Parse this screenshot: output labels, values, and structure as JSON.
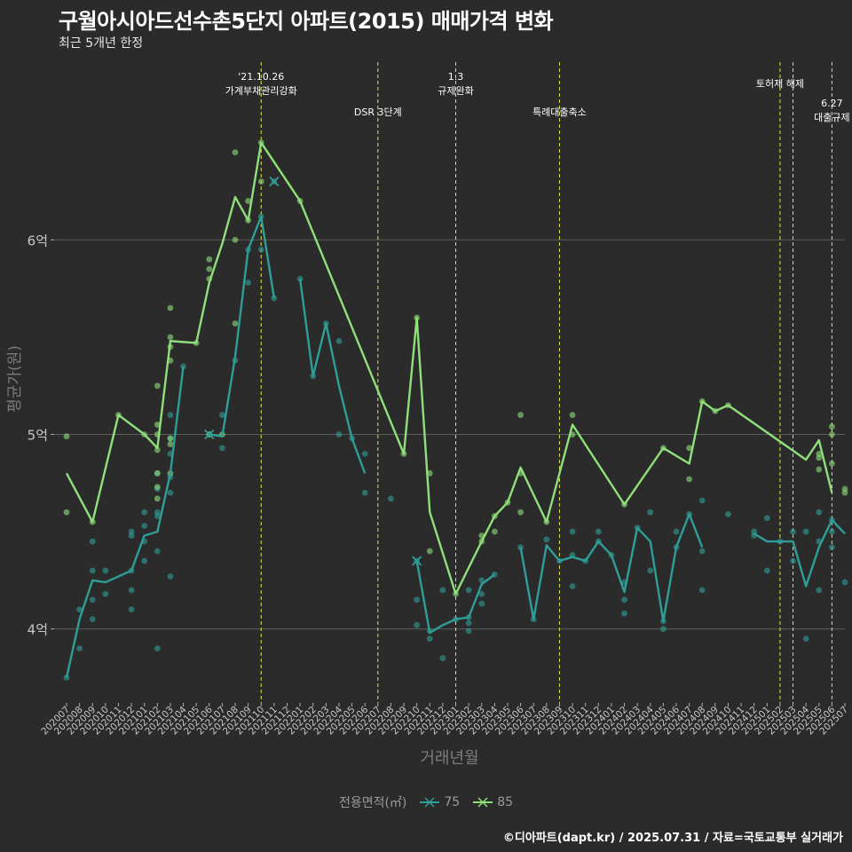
{
  "title": "구월아시아드선수촌5단지 아파트(2015) 매매가격 변화",
  "subtitle": "최근 5개년 한정",
  "footer": "©디아파트(dapt.kr) / 2025.07.31 / 자료=국토교통부 실거래가",
  "legend": {
    "title": "전용면적(㎡)",
    "items": [
      "75",
      "85"
    ]
  },
  "colors": {
    "background": "#2b2b2b",
    "gridline": "#5c5c5c",
    "series_75": "#2f9e98",
    "series_85": "#8fe07a",
    "event_line": "#e3e34a",
    "text_light": "#ffffff",
    "axis_title": "#7c7c7c"
  },
  "chart_data": {
    "type": "line",
    "xlabel": "거래년월",
    "ylabel": "평균가(원)",
    "ylim": [
      3.62,
      6.95
    ],
    "yticks": [
      4,
      5,
      6
    ],
    "ytick_labels": [
      "4억",
      "5억",
      "6억"
    ],
    "grid": true,
    "legend_position": "bottom",
    "x": [
      "202007",
      "202008",
      "202009",
      "202010",
      "202011",
      "202012",
      "202101",
      "202102",
      "202103",
      "202104",
      "202105",
      "202106",
      "202107",
      "202108",
      "202109",
      "202110",
      "202111",
      "202112",
      "202201",
      "202202",
      "202203",
      "202204",
      "202205",
      "202206",
      "202207",
      "202208",
      "202209",
      "202210",
      "202211",
      "202212",
      "202301",
      "202302",
      "202303",
      "202304",
      "202305",
      "202306",
      "202307",
      "202308",
      "202309",
      "202310",
      "202311",
      "202312",
      "202401",
      "202402",
      "202403",
      "202404",
      "202405",
      "202406",
      "202407",
      "202408",
      "202409",
      "202410",
      "202411",
      "202412",
      "202501",
      "202502",
      "202503",
      "202504",
      "202505",
      "202506",
      "202507"
    ],
    "series": [
      {
        "name": "75",
        "values": [
          3.75,
          4.05,
          4.25,
          4.24,
          4.27,
          4.3,
          4.48,
          4.5,
          4.8,
          5.35,
          null,
          5.0,
          4.99,
          5.4,
          5.95,
          6.12,
          5.7,
          null,
          5.8,
          5.3,
          5.57,
          5.25,
          4.98,
          4.8,
          null,
          4.67,
          null,
          4.35,
          3.98,
          4.02,
          4.05,
          4.06,
          4.23,
          4.28,
          null,
          4.42,
          4.05,
          4.43,
          4.35,
          4.37,
          4.35,
          4.45,
          4.38,
          4.19,
          4.52,
          4.45,
          4.04,
          4.42,
          4.59,
          4.42,
          null,
          4.59,
          null,
          4.49,
          4.45,
          4.45,
          4.45,
          4.22,
          4.42,
          4.56,
          4.49
        ]
      },
      {
        "name": "85",
        "values": [
          4.8,
          null,
          4.55,
          null,
          5.1,
          null,
          5.0,
          4.93,
          5.48,
          null,
          5.47,
          5.78,
          5.98,
          6.22,
          6.1,
          6.5,
          null,
          null,
          6.2,
          null,
          null,
          null,
          null,
          null,
          null,
          null,
          4.9,
          5.6,
          4.6,
          null,
          4.18,
          null,
          4.45,
          4.58,
          4.65,
          4.83,
          null,
          4.55,
          null,
          5.05,
          null,
          null,
          null,
          4.64,
          null,
          null,
          4.93,
          null,
          4.85,
          5.17,
          5.12,
          5.15,
          null,
          null,
          null,
          null,
          null,
          4.87,
          4.97,
          4.7,
          null
        ]
      }
    ],
    "scatter_75": [
      [
        "202007",
        3.75
      ],
      [
        "202008",
        4.1
      ],
      [
        "202008",
        3.9
      ],
      [
        "202009",
        4.45
      ],
      [
        "202009",
        4.3
      ],
      [
        "202009",
        4.15
      ],
      [
        "202009",
        4.05
      ],
      [
        "202010",
        4.3
      ],
      [
        "202010",
        4.18
      ],
      [
        "202012",
        4.5
      ],
      [
        "202012",
        4.3
      ],
      [
        "202012",
        4.2
      ],
      [
        "202012",
        4.1
      ],
      [
        "202012",
        4.48
      ],
      [
        "202101",
        4.6
      ],
      [
        "202101",
        4.53
      ],
      [
        "202101",
        4.45
      ],
      [
        "202101",
        4.35
      ],
      [
        "202102",
        4.8
      ],
      [
        "202102",
        4.72
      ],
      [
        "202102",
        4.6
      ],
      [
        "202102",
        4.58
      ],
      [
        "202102",
        4.4
      ],
      [
        "202102",
        3.9
      ],
      [
        "202103",
        5.1
      ],
      [
        "202103",
        4.98
      ],
      [
        "202103",
        4.9
      ],
      [
        "202103",
        4.78
      ],
      [
        "202103",
        4.7
      ],
      [
        "202103",
        4.27
      ],
      [
        "202104",
        5.35
      ],
      [
        "202106",
        5.0
      ],
      [
        "202107",
        5.1
      ],
      [
        "202107",
        4.93
      ],
      [
        "202108",
        5.38
      ],
      [
        "202109",
        5.78
      ],
      [
        "202109",
        5.95
      ],
      [
        "202110",
        6.12
      ],
      [
        "202110",
        5.95
      ],
      [
        "202111",
        6.3
      ],
      [
        "202111",
        5.7
      ],
      [
        "202201",
        5.8
      ],
      [
        "202202",
        5.3
      ],
      [
        "202203",
        5.57
      ],
      [
        "202204",
        5.48
      ],
      [
        "202204",
        5.0
      ],
      [
        "202205",
        4.98
      ],
      [
        "202206",
        4.9
      ],
      [
        "202206",
        4.7
      ],
      [
        "202208",
        4.67
      ],
      [
        "202210",
        4.35
      ],
      [
        "202210",
        4.15
      ],
      [
        "202210",
        4.02
      ],
      [
        "202211",
        3.99
      ],
      [
        "202211",
        3.95
      ],
      [
        "202212",
        4.2
      ],
      [
        "202212",
        3.85
      ],
      [
        "202301",
        4.05
      ],
      [
        "202302",
        4.06
      ],
      [
        "202302",
        4.03
      ],
      [
        "202302",
        3.99
      ],
      [
        "202302",
        4.2
      ],
      [
        "202303",
        4.25
      ],
      [
        "202303",
        4.18
      ],
      [
        "202303",
        4.13
      ],
      [
        "202304",
        4.28
      ],
      [
        "202306",
        4.42
      ],
      [
        "202307",
        4.05
      ],
      [
        "202308",
        4.46
      ],
      [
        "202309",
        4.35
      ],
      [
        "202310",
        4.5
      ],
      [
        "202310",
        4.38
      ],
      [
        "202310",
        4.22
      ],
      [
        "202311",
        4.35
      ],
      [
        "202312",
        4.5
      ],
      [
        "202312",
        4.45
      ],
      [
        "202401",
        4.38
      ],
      [
        "202402",
        4.24
      ],
      [
        "202402",
        4.15
      ],
      [
        "202402",
        4.08
      ],
      [
        "202403",
        4.52
      ],
      [
        "202404",
        4.6
      ],
      [
        "202404",
        4.3
      ],
      [
        "202405",
        4.04
      ],
      [
        "202405",
        4.0
      ],
      [
        "202406",
        4.5
      ],
      [
        "202406",
        4.42
      ],
      [
        "202407",
        4.59
      ],
      [
        "202408",
        4.66
      ],
      [
        "202408",
        4.4
      ],
      [
        "202408",
        4.2
      ],
      [
        "202410",
        4.59
      ],
      [
        "202412",
        4.5
      ],
      [
        "202412",
        4.48
      ],
      [
        "202501",
        4.57
      ],
      [
        "202501",
        4.3
      ],
      [
        "202502",
        4.45
      ],
      [
        "202503",
        4.5
      ],
      [
        "202503",
        4.35
      ],
      [
        "202504",
        4.5
      ],
      [
        "202504",
        3.95
      ],
      [
        "202505",
        4.6
      ],
      [
        "202505",
        4.45
      ],
      [
        "202505",
        4.2
      ],
      [
        "202506",
        4.56
      ],
      [
        "202506",
        4.42
      ],
      [
        "202506",
        4.5
      ],
      [
        "202507",
        4.24
      ]
    ],
    "scatter_85": [
      [
        "202007",
        4.99
      ],
      [
        "202007",
        4.6
      ],
      [
        "202009",
        4.55
      ],
      [
        "202011",
        5.1
      ],
      [
        "202101",
        5.0
      ],
      [
        "202102",
        5.25
      ],
      [
        "202102",
        5.05
      ],
      [
        "202102",
        5.0
      ],
      [
        "202102",
        4.92
      ],
      [
        "202102",
        4.8
      ],
      [
        "202102",
        4.73
      ],
      [
        "202102",
        4.67
      ],
      [
        "202103",
        5.65
      ],
      [
        "202103",
        5.5
      ],
      [
        "202103",
        5.45
      ],
      [
        "202103",
        5.38
      ],
      [
        "202103",
        4.98
      ],
      [
        "202103",
        4.95
      ],
      [
        "202103",
        4.8
      ],
      [
        "202105",
        5.47
      ],
      [
        "202106",
        5.9
      ],
      [
        "202106",
        5.85
      ],
      [
        "202106",
        5.8
      ],
      [
        "202106",
        5.0
      ],
      [
        "202107",
        5.0
      ],
      [
        "202108",
        6.45
      ],
      [
        "202108",
        6.0
      ],
      [
        "202108",
        5.57
      ],
      [
        "202109",
        6.2
      ],
      [
        "202109",
        6.1
      ],
      [
        "202110",
        6.5
      ],
      [
        "202110",
        6.3
      ],
      [
        "202201",
        6.2
      ],
      [
        "202209",
        4.9
      ],
      [
        "202210",
        5.6
      ],
      [
        "202211",
        4.8
      ],
      [
        "202211",
        4.4
      ],
      [
        "202301",
        4.18
      ],
      [
        "202303",
        4.48
      ],
      [
        "202303",
        4.45
      ],
      [
        "202304",
        4.58
      ],
      [
        "202304",
        4.5
      ],
      [
        "202305",
        4.65
      ],
      [
        "202306",
        5.1
      ],
      [
        "202306",
        4.8
      ],
      [
        "202306",
        4.6
      ],
      [
        "202308",
        4.55
      ],
      [
        "202310",
        5.1
      ],
      [
        "202310",
        5.0
      ],
      [
        "202402",
        4.64
      ],
      [
        "202405",
        4.93
      ],
      [
        "202407",
        4.93
      ],
      [
        "202407",
        4.77
      ],
      [
        "202408",
        5.17
      ],
      [
        "202409",
        5.12
      ],
      [
        "202410",
        5.15
      ],
      [
        "202505",
        4.9
      ],
      [
        "202505",
        4.88
      ],
      [
        "202505",
        4.82
      ],
      [
        "202506",
        5.04
      ],
      [
        "202506",
        5.0
      ],
      [
        "202506",
        4.85
      ],
      [
        "202507",
        4.72
      ],
      [
        "202507",
        4.7
      ]
    ],
    "x_markers": [
      {
        "series": "75",
        "x": "202111",
        "y": 6.3
      },
      {
        "series": "75",
        "x": "202106",
        "y": 5.0
      },
      {
        "series": "75",
        "x": "202210",
        "y": 4.35
      }
    ],
    "events": [
      {
        "x": "202110",
        "label": "'21.10.26\n가계부채관리강화",
        "level": 0
      },
      {
        "x": "202207",
        "label": "DSR 3단계",
        "level": 2
      },
      {
        "x": "202301",
        "label": "1.3\n규제완화",
        "level": 0
      },
      {
        "x": "202309",
        "label": "특례대출축소",
        "level": 2
      },
      {
        "x": "202502",
        "label": "토허제 해제",
        "level": 1
      },
      {
        "x": "202503",
        "label": "",
        "level": 1
      },
      {
        "x": "202506",
        "label": "6.27\n대출규제",
        "level": 3
      }
    ]
  }
}
